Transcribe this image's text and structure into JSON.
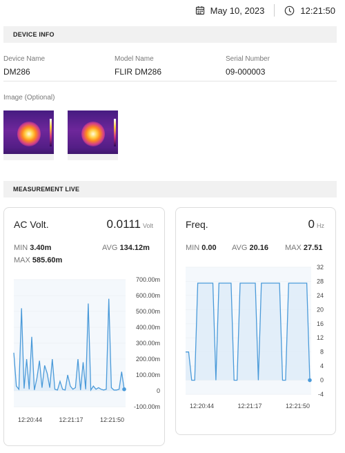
{
  "header": {
    "date": "May 10, 2023",
    "time": "12:21:50"
  },
  "device_info": {
    "section_title": "DEVICE INFO",
    "device_name_label": "Device Name",
    "device_name": "DM286",
    "model_name_label": "Model Name",
    "model_name": "FLIR DM286",
    "serial_label": "Serial Number",
    "serial": "09-000003",
    "image_label": "Image (Optional)"
  },
  "measurement": {
    "section_title": "MEASUREMENT LIVE",
    "cards": [
      {
        "title": "AC Volt.",
        "value": "0.0111",
        "unit": "Volt",
        "min_label": "MIN",
        "min": "3.40m",
        "avg_label": "AVG",
        "avg": "134.12m",
        "max_label": "MAX",
        "max": "585.60m"
      },
      {
        "title": "Freq.",
        "value": "0",
        "unit": "Hz",
        "min_label": "MIN",
        "min": "0.00",
        "avg_label": "AVG",
        "avg": "20.16",
        "max_label": "MAX",
        "max": "27.51"
      }
    ]
  },
  "colors": {
    "line": "#4a9ad9",
    "fill": "#dcebf8",
    "accent": "#4a9ad9"
  },
  "chart_data": [
    {
      "type": "area",
      "y_ticks": [
        "700.00m",
        "600.00m",
        "500.00m",
        "400.00m",
        "300.00m",
        "200.00m",
        "100.00m",
        "0",
        "-100.00m"
      ],
      "x_ticks": [
        "12:20:44",
        "12:21:17",
        "12:21:50"
      ],
      "ylim": [
        -100,
        700
      ],
      "values": [
        240,
        30,
        10,
        520,
        15,
        200,
        10,
        340,
        5,
        80,
        190,
        20,
        160,
        110,
        20,
        200,
        10,
        5,
        60,
        10,
        5,
        100,
        30,
        10,
        20,
        200,
        5,
        180,
        10,
        550,
        5,
        30,
        10,
        20,
        10,
        5,
        10,
        580,
        20,
        5,
        5,
        10,
        120,
        10
      ]
    },
    {
      "type": "area",
      "y_ticks": [
        "32",
        "28",
        "24",
        "20",
        "16",
        "12",
        "8",
        "4",
        "0",
        "-4"
      ],
      "x_ticks": [
        "12:20:44",
        "12:21:17",
        "12:21:50"
      ],
      "ylim": [
        -4,
        32
      ],
      "values": [
        8,
        8,
        0,
        0,
        27.5,
        27.5,
        27.5,
        27.5,
        27.5,
        27.5,
        0,
        27.5,
        27.5,
        27.5,
        27.5,
        27.5,
        0,
        0,
        27.5,
        27.5,
        27.5,
        27.5,
        27.5,
        27.5,
        0,
        27.5,
        27.5,
        27.5,
        27.5,
        27.5,
        27.5,
        27.5,
        0,
        0,
        27.5,
        27.5,
        27.5,
        27.5,
        27.5,
        27.5,
        27.5,
        0
      ]
    }
  ]
}
